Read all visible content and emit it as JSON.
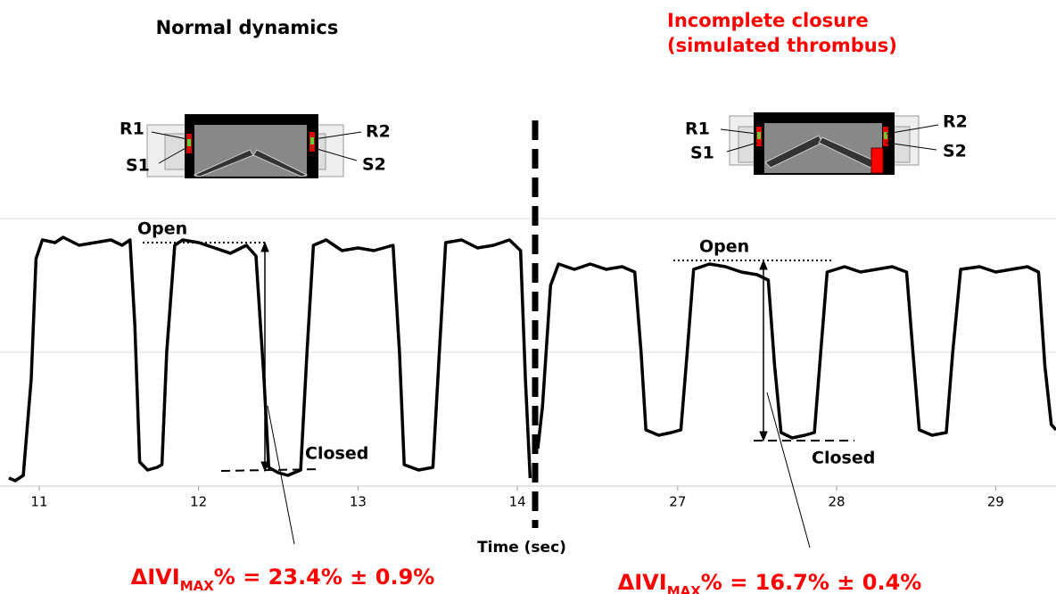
{
  "chart_data": [
    {
      "type": "line",
      "title": "Normal dynamics",
      "title_color": "#000000",
      "color": "#000000",
      "xlim": [
        10.81,
        14.1
      ],
      "xticks": [
        11,
        12,
        13,
        14
      ],
      "ylim": [
        0,
        100
      ],
      "x": [
        10.81,
        10.85,
        10.9,
        10.95,
        10.98,
        11.02,
        11.1,
        11.15,
        11.25,
        11.35,
        11.45,
        11.52,
        11.57,
        11.6,
        11.63,
        11.68,
        11.74,
        11.77,
        11.8,
        11.85,
        11.9,
        12.0,
        12.1,
        12.2,
        12.3,
        12.36,
        12.41,
        12.44,
        12.5,
        12.56,
        12.64,
        12.68,
        12.72,
        12.8,
        12.9,
        13.0,
        13.1,
        13.22,
        13.26,
        13.29,
        13.38,
        13.47,
        13.51,
        13.55,
        13.65,
        13.75,
        13.85,
        13.95,
        14.02,
        14.05,
        14.08
      ],
      "values": [
        3,
        2,
        4,
        40,
        85,
        92,
        91,
        93,
        90,
        91,
        92,
        90,
        92,
        60,
        9,
        6,
        7,
        8,
        50,
        90,
        92,
        91,
        89,
        87,
        90,
        86,
        40,
        7,
        5,
        4,
        6,
        50,
        90,
        92,
        88,
        89,
        88,
        90,
        50,
        8,
        6,
        7,
        50,
        91,
        92,
        89,
        90,
        92,
        88,
        40,
        3
      ],
      "open_label": "Open",
      "closed_label": "Closed",
      "device_labels": [
        "R1",
        "S1",
        "R2",
        "S2"
      ],
      "result": [
        "ΔIVI",
        "MAX",
        "% = 23.4% ± 0.9%"
      ]
    },
    {
      "type": "line",
      "title": [
        "Incomplete closure",
        "(simulated thrombus)"
      ],
      "title_color": "#ff0000",
      "color": "#000000",
      "xlim": [
        26.12,
        29.38
      ],
      "xticks": [
        27,
        28,
        29
      ],
      "ylim": [
        0,
        100
      ],
      "x": [
        26.12,
        26.15,
        26.2,
        26.25,
        26.35,
        26.45,
        26.55,
        26.65,
        26.73,
        26.77,
        26.8,
        26.88,
        26.96,
        27.02,
        27.06,
        27.1,
        27.2,
        27.3,
        27.4,
        27.5,
        27.57,
        27.61,
        27.65,
        27.72,
        27.8,
        27.86,
        27.9,
        27.94,
        28.05,
        28.15,
        28.25,
        28.35,
        28.44,
        28.48,
        28.52,
        28.6,
        28.69,
        28.73,
        28.78,
        28.9,
        29.0,
        29.1,
        29.2,
        29.27,
        29.31,
        29.35,
        29.38
      ],
      "values": [
        14,
        30,
        75,
        83,
        81,
        83,
        81,
        82,
        80,
        50,
        21,
        19,
        20,
        21,
        50,
        81,
        83,
        82,
        80,
        79,
        77,
        45,
        20,
        18,
        19,
        20,
        50,
        80,
        82,
        80,
        81,
        82,
        80,
        50,
        21,
        19,
        20,
        50,
        81,
        82,
        80,
        81,
        82,
        80,
        45,
        23,
        21
      ],
      "open_label": "Open",
      "closed_label": "Closed",
      "device_labels": [
        "R1",
        "S1",
        "R2",
        "S2"
      ],
      "result": [
        "ΔIVI",
        "MAX",
        "% = 16.7% ± 0.4%"
      ]
    }
  ],
  "x_label": "Time (sec)"
}
